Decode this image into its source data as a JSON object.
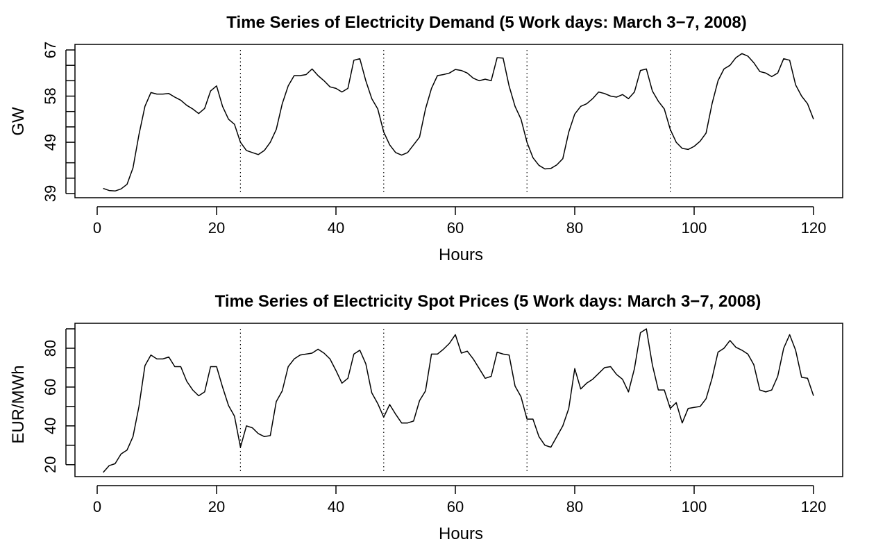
{
  "chart_data": [
    {
      "type": "line",
      "title": "Time Series of Electricity Demand (5 Work days: March 3−7, 2008)",
      "xlabel": "Hours",
      "ylabel": "GW",
      "xlim": [
        1,
        120
      ],
      "ylim": [
        39,
        67
      ],
      "x_ticks": [
        0,
        20,
        40,
        60,
        80,
        100,
        120
      ],
      "y_ticks": [
        39,
        49,
        58,
        67
      ],
      "y_minor_ticks": [
        42,
        45,
        52,
        55,
        61,
        64
      ],
      "vlines": [
        24,
        48,
        72,
        96
      ],
      "vlines_style": "dotted",
      "grid": false,
      "series": [
        {
          "x_start": 1,
          "values": [
            40.0,
            39.6,
            39.5,
            39.9,
            40.8,
            44.0,
            50.5,
            56.0,
            58.7,
            58.4,
            58.4,
            58.5,
            57.8,
            57.2,
            56.2,
            55.5,
            54.6,
            55.6,
            59.0,
            60.0,
            56.0,
            53.5,
            52.5,
            49.0,
            47.4,
            47.0,
            46.6,
            47.4,
            49.0,
            51.5,
            56.5,
            60.0,
            62.0,
            62.0,
            62.2,
            63.3,
            62.0,
            61.0,
            59.8,
            59.5,
            58.8,
            59.5,
            65.0,
            65.3,
            61.0,
            57.5,
            55.5,
            51.0,
            48.5,
            47.0,
            46.5,
            47.0,
            48.5,
            50.0,
            55.5,
            59.5,
            62.0,
            62.2,
            62.5,
            63.2,
            63.0,
            62.5,
            61.5,
            61.0,
            61.3,
            61.0,
            65.5,
            65.4,
            60.0,
            56.0,
            53.5,
            49.0,
            46.0,
            44.5,
            43.8,
            43.9,
            44.6,
            45.8,
            51.0,
            54.5,
            56.0,
            56.5,
            57.5,
            58.8,
            58.5,
            58.0,
            57.8,
            58.3,
            57.5,
            58.8,
            63.0,
            63.3,
            59.0,
            57.0,
            55.5,
            51.5,
            49.0,
            47.8,
            47.6,
            48.2,
            49.2,
            50.8,
            56.5,
            61.0,
            63.3,
            64.0,
            65.5,
            66.3,
            65.8,
            64.5,
            62.8,
            62.5,
            61.8,
            62.5,
            65.3,
            65.0,
            60.2,
            58.0,
            56.5,
            53.5
          ]
        }
      ]
    },
    {
      "type": "line",
      "title": "Time Series of Electricity Spot Prices (5 Work days: March 3−7, 2008)",
      "xlabel": "Hours",
      "ylabel": "EUR/MWh",
      "xlim": [
        1,
        120
      ],
      "ylim": [
        16,
        90
      ],
      "x_ticks": [
        0,
        20,
        40,
        60,
        80,
        100,
        120
      ],
      "y_ticks": [
        20,
        40,
        60,
        80
      ],
      "y_minor_ticks": [
        30,
        50,
        70,
        90
      ],
      "vlines": [
        24,
        48,
        72,
        96
      ],
      "vlines_style": "dotted",
      "grid": false,
      "series": [
        {
          "x_start": 1,
          "values": [
            16,
            19.5,
            20.5,
            25.5,
            27.5,
            34.5,
            50,
            71,
            76.5,
            74.5,
            74.5,
            75.5,
            70.5,
            70.5,
            63,
            58.5,
            55.5,
            57.5,
            70.5,
            70.5,
            60,
            50.5,
            45,
            29,
            40,
            39,
            36,
            34.5,
            35,
            52.5,
            58,
            70.5,
            74.5,
            76.5,
            77,
            77.5,
            79.5,
            77.5,
            74.5,
            68.5,
            62,
            64.5,
            77,
            79,
            72,
            57,
            51.5,
            44.5,
            51,
            46,
            41.5,
            41.5,
            42.5,
            53,
            58,
            77,
            77,
            79.5,
            82.5,
            87,
            77.5,
            78.5,
            74.5,
            69.5,
            64.5,
            65.5,
            78,
            77,
            76.5,
            60.5,
            55,
            43.5,
            43.5,
            34.5,
            30,
            29,
            34.5,
            40,
            49,
            69.5,
            59,
            62,
            64,
            67,
            70,
            70.5,
            66.5,
            64,
            57.5,
            69.5,
            88,
            90,
            71.5,
            58.5,
            58.5,
            49,
            52,
            41.5,
            49,
            49.5,
            50,
            54,
            64.5,
            78,
            80,
            84,
            80.5,
            79,
            77,
            71.5,
            58.5,
            57.5,
            58.5,
            65.5,
            80,
            87,
            79,
            65,
            64.5,
            55.5
          ]
        }
      ]
    }
  ]
}
